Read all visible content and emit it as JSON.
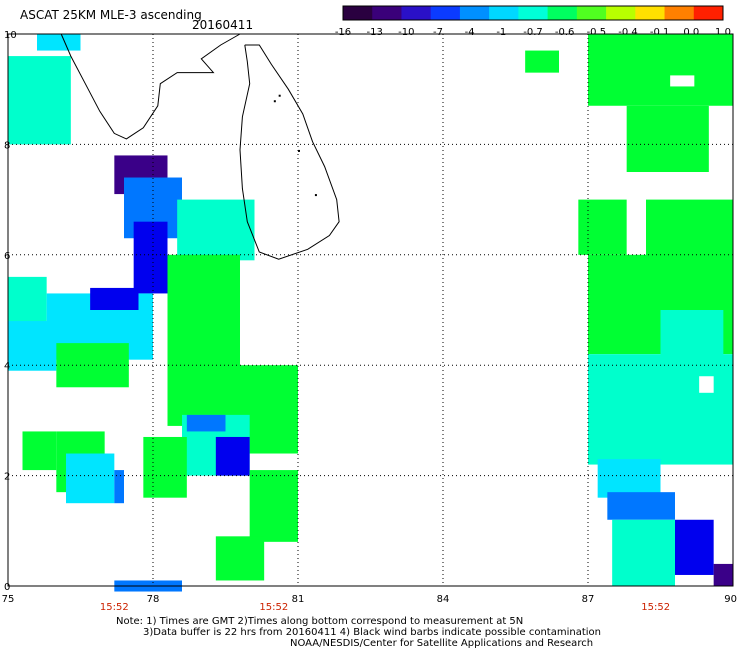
{
  "header": {
    "title": "ASCAT 25KM MLE-3 ascending",
    "date": "20160411"
  },
  "colorbar": {
    "labels": [
      "-16",
      "-13",
      "-10",
      "-7",
      "-4",
      "-1",
      "-0.7",
      "-0.6",
      "-0.5",
      "-0.4",
      "-0.1",
      "0.0",
      "1.0"
    ],
    "colors": [
      "#2a0040",
      "#3a007a",
      "#2a10c8",
      "#0b3bff",
      "#0090ff",
      "#00d8ff",
      "#00ffd8",
      "#00ff60",
      "#50ff20",
      "#b8ff00",
      "#ffe000",
      "#ff8000",
      "#ff2000"
    ]
  },
  "axes": {
    "x_ticks": [
      "75",
      "78",
      "81",
      "84",
      "87",
      "90"
    ],
    "y_ticks": [
      "10",
      "8",
      "6",
      "4",
      "2",
      "0"
    ],
    "x_range": [
      75,
      90
    ],
    "y_range": [
      0,
      10
    ]
  },
  "time_labels": [
    {
      "lon": 77.2,
      "text": "15:52"
    },
    {
      "lon": 80.5,
      "text": "15:52"
    },
    {
      "lon": 88.4,
      "text": "15:52"
    }
  ],
  "notes": {
    "line1": "Note: 1) Times are GMT 2)Times along bottom correspond to measurement at 5N",
    "line2": "3)Data buffer is 22 hrs from 20160411 4) Black wind barbs indicate possible contamination",
    "line3": "NOAA/NESDIS/Center for Satellite Applications and Research"
  },
  "colors": {
    "green": "#00ff33",
    "cyan": "#00ffcc",
    "light_cyan": "#00e5ff",
    "blue": "#0077ff",
    "deep_blue": "#0000ee",
    "purple": "#3a0088"
  },
  "data_regions": [
    {
      "lon": [
        75.0,
        76.3
      ],
      "lat": [
        8.0,
        9.6
      ],
      "level": "cyan"
    },
    {
      "lon": [
        75.6,
        76.5
      ],
      "lat": [
        9.7,
        10.0
      ],
      "level": "light_cyan"
    },
    {
      "lon": [
        77.2,
        78.3
      ],
      "lat": [
        7.1,
        7.8
      ],
      "level": "purple"
    },
    {
      "lon": [
        77.4,
        78.6
      ],
      "lat": [
        6.3,
        7.4
      ],
      "level": "blue"
    },
    {
      "lon": [
        77.6,
        78.3
      ],
      "lat": [
        5.3,
        6.6
      ],
      "level": "deep_blue"
    },
    {
      "lon": [
        75.0,
        75.8
      ],
      "lat": [
        4.7,
        5.6
      ],
      "level": "cyan"
    },
    {
      "lon": [
        75.8,
        78.0
      ],
      "lat": [
        4.1,
        5.3
      ],
      "level": "light_cyan"
    },
    {
      "lon": [
        76.7,
        77.7
      ],
      "lat": [
        5.0,
        5.4
      ],
      "level": "deep_blue"
    },
    {
      "lon": [
        75.0,
        76.0
      ],
      "lat": [
        3.9,
        4.8
      ],
      "level": "light_cyan"
    },
    {
      "lon": [
        76.0,
        77.5
      ],
      "lat": [
        3.6,
        4.4
      ],
      "level": "green"
    },
    {
      "lon": [
        78.5,
        80.1
      ],
      "lat": [
        5.9,
        7.0
      ],
      "level": "cyan"
    },
    {
      "lon": [
        78.3,
        79.8
      ],
      "lat": [
        2.9,
        6.0
      ],
      "level": "green"
    },
    {
      "lon": [
        79.8,
        81.0
      ],
      "lat": [
        2.4,
        4.0
      ],
      "level": "green"
    },
    {
      "lon": [
        78.6,
        80.0
      ],
      "lat": [
        2.0,
        3.1
      ],
      "level": "cyan"
    },
    {
      "lon": [
        78.7,
        79.5
      ],
      "lat": [
        2.8,
        3.1
      ],
      "level": "blue"
    },
    {
      "lon": [
        79.3,
        80.0
      ],
      "lat": [
        2.0,
        2.7
      ],
      "level": "deep_blue"
    },
    {
      "lon": [
        77.8,
        78.7
      ],
      "lat": [
        1.6,
        2.7
      ],
      "level": "green"
    },
    {
      "lon": [
        76.0,
        77.0
      ],
      "lat": [
        1.7,
        2.8
      ],
      "level": "green"
    },
    {
      "lon": [
        75.3,
        76.0
      ],
      "lat": [
        2.1,
        2.8
      ],
      "level": "green"
    },
    {
      "lon": [
        76.2,
        77.2
      ],
      "lat": [
        1.5,
        2.4
      ],
      "level": "light_cyan"
    },
    {
      "lon": [
        77.2,
        77.4
      ],
      "lat": [
        1.5,
        2.1
      ],
      "level": "blue"
    },
    {
      "lon": [
        80.0,
        81.0
      ],
      "lat": [
        0.8,
        2.1
      ],
      "level": "green"
    },
    {
      "lon": [
        79.3,
        80.3
      ],
      "lat": [
        0.1,
        0.9
      ],
      "level": "green"
    },
    {
      "lon": [
        77.2,
        78.6
      ],
      "lat": [
        -0.1,
        0.1
      ],
      "level": "blue"
    },
    {
      "lon": [
        85.7,
        86.4
      ],
      "lat": [
        9.3,
        9.7
      ],
      "level": "green"
    },
    {
      "lon": [
        87.0,
        90.0
      ],
      "lat": [
        8.7,
        10.0
      ],
      "level": "green"
    },
    {
      "lon": [
        87.8,
        89.5
      ],
      "lat": [
        7.5,
        8.7
      ],
      "level": "green"
    },
    {
      "lon": [
        86.8,
        87.8
      ],
      "lat": [
        6.0,
        7.0
      ],
      "level": "green"
    },
    {
      "lon": [
        88.2,
        90.0
      ],
      "lat": [
        5.2,
        7.0
      ],
      "level": "green"
    },
    {
      "lon": [
        87.0,
        90.0
      ],
      "lat": [
        4.2,
        6.0
      ],
      "level": "green"
    },
    {
      "lon": [
        88.5,
        89.8
      ],
      "lat": [
        4.0,
        5.0
      ],
      "level": "cyan"
    },
    {
      "lon": [
        87.0,
        90.0
      ],
      "lat": [
        2.2,
        4.2
      ],
      "level": "cyan"
    },
    {
      "lon": [
        87.2,
        88.5
      ],
      "lat": [
        1.6,
        2.3
      ],
      "level": "light_cyan"
    },
    {
      "lon": [
        87.4,
        88.8
      ],
      "lat": [
        1.2,
        1.7
      ],
      "level": "blue"
    },
    {
      "lon": [
        87.5,
        88.8
      ],
      "lat": [
        0.0,
        1.2
      ],
      "level": "cyan"
    },
    {
      "lon": [
        88.8,
        89.6
      ],
      "lat": [
        0.2,
        1.2
      ],
      "level": "deep_blue"
    },
    {
      "lon": [
        89.6,
        90.0
      ],
      "lat": [
        0.0,
        0.4
      ],
      "level": "purple"
    }
  ]
}
